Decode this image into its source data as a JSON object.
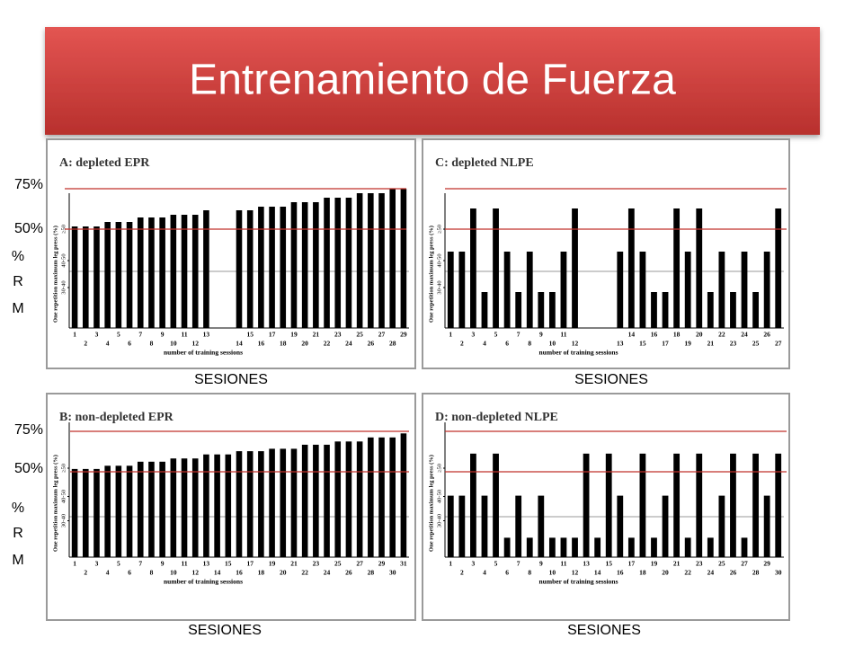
{
  "slide": {
    "title": "Entrenamiento de Fuerza",
    "marker_high": "75%",
    "marker_low": "50%",
    "unit_letters": [
      "%",
      "R",
      "M"
    ],
    "x_caption": "SESIONES"
  },
  "chart_data": [
    {
      "type": "bar",
      "title": "A: depleted EPR",
      "x_label": "number of training sessions",
      "y_label": "One repetition maximum leg press (%)",
      "color": "#000000",
      "categories": [
        "1",
        "2",
        "3",
        "4",
        "5",
        "6",
        "7",
        "8",
        "9",
        "10",
        "11",
        "12",
        "13",
        null,
        null,
        "14",
        "15",
        "16",
        "17",
        "18",
        "19",
        "20",
        "21",
        "22",
        "23",
        "24",
        "25",
        "26",
        "27",
        "28",
        "29"
      ],
      "values": [
        56.5,
        56.5,
        56.5,
        59,
        59,
        59,
        61.5,
        61.5,
        61.5,
        63,
        63,
        63,
        65.5,
        null,
        null,
        65.5,
        65.5,
        67.5,
        67.5,
        67.5,
        70,
        70,
        70,
        72.5,
        72.5,
        72.5,
        75,
        75,
        75,
        77.5,
        77.5
      ],
      "ylim": [
        0,
        85
      ],
      "yticks": [
        {
          "value": 22.5,
          "label": "30-40"
        },
        {
          "value": 37.5,
          "label": "40-50"
        },
        {
          "value": 55,
          "label": "≥50"
        }
      ],
      "reference_line": 31.5
    },
    {
      "type": "bar",
      "title": "C: depleted NLPE",
      "x_label": "number of training sessions",
      "y_label": "One repetition maximum leg press (%)",
      "color": "#000000",
      "categories": [
        "1",
        "2",
        "3",
        "4",
        "5",
        "6",
        "7",
        "8",
        "9",
        "10",
        "11",
        "12",
        null,
        null,
        null,
        "13",
        "14",
        "15",
        "16",
        "17",
        "18",
        "19",
        "20",
        "21",
        "22",
        "23",
        "24",
        "25",
        "26",
        "27"
      ],
      "values": [
        42.5,
        42.5,
        66.5,
        20,
        66.5,
        42.5,
        20,
        42.5,
        20,
        20,
        42.5,
        66.5,
        null,
        null,
        null,
        42.5,
        66.5,
        42.5,
        20,
        20,
        66.5,
        42.5,
        66.5,
        20,
        42.5,
        20,
        42.5,
        20,
        42.5,
        66.5
      ],
      "ylim": [
        0,
        85
      ],
      "yticks": [
        {
          "value": 22.5,
          "label": "30-40"
        },
        {
          "value": 37.5,
          "label": "40-50"
        },
        {
          "value": 55,
          "label": "≥50"
        }
      ],
      "reference_line": 31.5
    },
    {
      "type": "bar",
      "title": "B: non-depleted EPR",
      "x_label": "number of training sessions",
      "y_label": "One repetition maximum leg press (%)",
      "color": "#000000",
      "categories": [
        "1",
        "2",
        "3",
        "4",
        "5",
        "6",
        "7",
        "8",
        "9",
        "10",
        "11",
        "12",
        "13",
        "14",
        "15",
        "16",
        "17",
        "18",
        "19",
        "20",
        "21",
        "22",
        "23",
        "24",
        "25",
        "26",
        "27",
        "28",
        "29",
        "30",
        "31"
      ],
      "values": [
        54.5,
        54.5,
        54.5,
        56.5,
        56.5,
        56.5,
        59,
        59,
        59,
        61,
        61,
        61,
        63.5,
        63.5,
        63.5,
        65.5,
        65.5,
        65.5,
        67,
        67,
        67,
        69.5,
        69.5,
        69.5,
        71.5,
        71.5,
        71.5,
        74,
        74,
        74,
        76.5
      ],
      "ylim": [
        0,
        85
      ],
      "yticks": [
        {
          "value": 22.5,
          "label": "30-40"
        },
        {
          "value": 37.5,
          "label": "40-50"
        },
        {
          "value": 55,
          "label": "≥50"
        }
      ],
      "reference_line": 25
    },
    {
      "type": "bar",
      "title": "D: non-depleted NLPE",
      "x_label": "number of training sessions",
      "y_label": "One repetition maximum leg press (%)",
      "color": "#000000",
      "categories": [
        "1",
        "2",
        "3",
        "4",
        "5",
        "6",
        "7",
        "8",
        "9",
        "10",
        "11",
        "12",
        "13",
        "14",
        "15",
        "16",
        "17",
        "18",
        "19",
        "20",
        "21",
        "22",
        "23",
        "24",
        "25",
        "26",
        "27",
        "28",
        "29",
        "30"
      ],
      "values": [
        38,
        38,
        64,
        38,
        64,
        12,
        38,
        12,
        38,
        12,
        12,
        12,
        64,
        12,
        64,
        38,
        12,
        64,
        12,
        38,
        64,
        12,
        64,
        12,
        38,
        64,
        12,
        64,
        38,
        64
      ],
      "ylim": [
        0,
        85
      ],
      "yticks": [
        {
          "value": 22.5,
          "label": "30-40"
        },
        {
          "value": 37.5,
          "label": "40-50"
        },
        {
          "value": 55,
          "label": "≥50"
        }
      ],
      "reference_line": 25
    }
  ]
}
